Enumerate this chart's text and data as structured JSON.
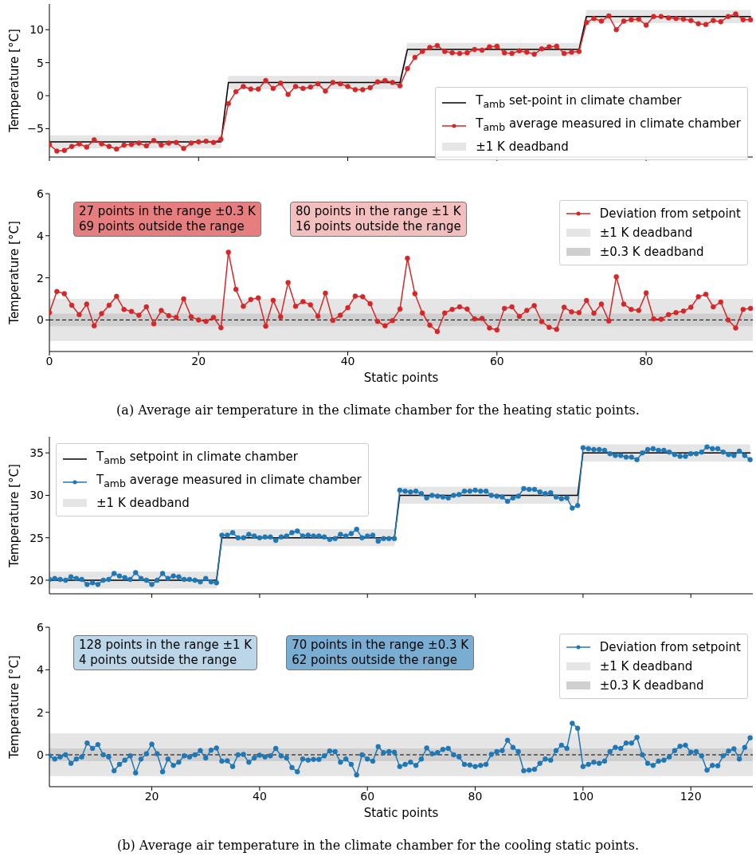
{
  "chart_data": [
    {
      "type": "line",
      "ylabel": "Temperature [°C]",
      "tick_labels": "y",
      "legend": "bottom right",
      "marker": "circle",
      "line_style": "solid",
      "x": [
        0,
        1,
        2,
        3,
        4,
        5,
        6,
        7,
        8,
        9,
        10,
        11,
        12,
        13,
        14,
        15,
        16,
        17,
        18,
        19,
        20,
        21,
        22,
        23,
        24,
        25,
        26,
        27,
        28,
        29,
        30,
        31,
        32,
        33,
        34,
        35,
        36,
        37,
        38,
        39,
        40,
        41,
        42,
        43,
        44,
        45,
        46,
        47,
        48,
        49,
        50,
        51,
        52,
        53,
        54,
        55,
        56,
        57,
        58,
        59,
        60,
        61,
        62,
        63,
        64,
        65,
        66,
        67,
        68,
        69,
        70,
        71,
        72,
        73,
        74,
        75,
        76,
        77,
        78,
        79,
        80,
        81,
        82,
        83,
        84,
        85,
        86,
        87,
        88,
        89,
        90,
        91,
        92,
        93,
        94
      ],
      "xlim": [
        0,
        94.3
      ],
      "xticks": [
        0,
        20,
        40,
        60,
        80
      ],
      "ylim": [
        -9.3,
        13.9
      ],
      "yticks": [
        {
          "value": -5,
          "label": "−5"
        },
        0,
        5,
        10
      ],
      "series": [
        {
          "name": "T$_{amb}$ set-point in climate chamber",
          "type": "line",
          "marker": "none",
          "color": "#000000",
          "values": [
            -7,
            -7,
            -7,
            -7,
            -7,
            -7,
            -7,
            -7,
            -7,
            -7,
            -7,
            -7,
            -7,
            -7,
            -7,
            -7,
            -7,
            -7,
            -7,
            -7,
            -7,
            -7,
            -7,
            -7,
            2,
            2,
            2,
            2,
            2,
            2,
            2,
            2,
            2,
            2,
            2,
            2,
            2,
            2,
            2,
            2,
            2,
            2,
            2,
            2,
            2,
            2,
            2,
            2,
            7,
            7,
            7,
            7,
            7,
            7,
            7,
            7,
            7,
            7,
            7,
            7,
            7,
            7,
            7,
            7,
            7,
            7,
            7,
            7,
            7,
            7,
            7,
            7,
            12,
            12,
            12,
            12,
            12,
            12,
            12,
            12,
            12,
            12,
            12,
            12,
            12,
            12,
            12,
            12,
            12,
            12,
            12,
            12,
            12,
            12,
            12
          ]
        },
        {
          "name": "T$_{amb}$ average measured in climate chamber",
          "type": "line",
          "color": "#d62728",
          "values": [
            -7.4,
            -8.4,
            -8.3,
            -7.7,
            -7.3,
            -7.8,
            -6.7,
            -7.3,
            -7.7,
            -8.1,
            -7.5,
            -7.4,
            -7.2,
            -7.6,
            -6.8,
            -7.5,
            -7.2,
            -7.1,
            -8.0,
            -7.2,
            -7.0,
            -6.9,
            -7.1,
            -6.6,
            -1.2,
            0.6,
            1.4,
            1.0,
            1.0,
            2.3,
            1.1,
            1.9,
            0.2,
            1.4,
            1.1,
            1.3,
            1.8,
            0.7,
            2.0,
            1.8,
            1.4,
            0.9,
            0.9,
            1.2,
            2.1,
            2.3,
            2.0,
            1.5,
            4.1,
            5.8,
            6.7,
            7.3,
            7.6,
            6.7,
            6.5,
            6.4,
            6.5,
            7.0,
            6.9,
            7.4,
            7.5,
            6.5,
            6.4,
            6.8,
            6.6,
            6.3,
            7.1,
            7.4,
            7.5,
            6.4,
            6.6,
            6.7,
            11.1,
            11.7,
            11.3,
            12.1,
            10.0,
            11.3,
            11.5,
            11.6,
            10.7,
            12.0,
            12.0,
            11.8,
            11.7,
            11.6,
            11.4,
            10.9,
            10.8,
            11.4,
            11.2,
            12.0,
            12.4,
            11.5,
            11.5
          ]
        },
        {
          "name": "±1 K deadband",
          "type": "line",
          "marker": "none",
          "color": "#e5e5e5",
          "values": [
            null,
            null,
            null,
            null,
            null,
            null,
            null,
            null,
            null,
            null,
            null,
            null,
            null,
            null,
            null,
            null,
            null,
            null,
            null,
            null,
            null,
            null,
            null,
            null,
            null,
            null,
            null,
            null,
            null,
            null,
            null,
            null,
            null,
            null,
            null,
            null,
            null,
            null,
            null,
            null,
            null,
            null,
            null,
            null,
            null,
            null,
            null,
            null,
            null,
            null,
            null,
            null,
            null,
            null,
            null,
            null,
            null,
            null,
            null,
            null,
            null,
            null,
            null,
            null,
            null,
            null,
            null,
            null,
            null,
            null,
            null,
            null,
            null,
            null,
            null,
            null,
            null,
            null,
            null,
            null,
            null,
            null,
            null,
            null,
            null,
            null,
            null,
            null,
            null,
            null,
            null,
            null,
            null,
            null,
            null
          ],
          "lower": [
            -8,
            -8,
            -8,
            -8,
            -8,
            -8,
            -8,
            -8,
            -8,
            -8,
            -8,
            -8,
            -8,
            -8,
            -8,
            -8,
            -8,
            -8,
            -8,
            -8,
            -8,
            -8,
            -8,
            -8,
            1,
            1,
            1,
            1,
            1,
            1,
            1,
            1,
            1,
            1,
            1,
            1,
            1,
            1,
            1,
            1,
            1,
            1,
            1,
            1,
            1,
            1,
            1,
            1,
            6,
            6,
            6,
            6,
            6,
            6,
            6,
            6,
            6,
            6,
            6,
            6,
            6,
            6,
            6,
            6,
            6,
            6,
            6,
            6,
            6,
            6,
            6,
            6,
            11,
            11,
            11,
            11,
            11,
            11,
            11,
            11,
            11,
            11,
            11,
            11,
            11,
            11,
            11,
            11,
            11,
            11,
            11,
            11,
            11,
            11,
            11
          ],
          "upper": [
            -6,
            -6,
            -6,
            -6,
            -6,
            -6,
            -6,
            -6,
            -6,
            -6,
            -6,
            -6,
            -6,
            -6,
            -6,
            -6,
            -6,
            -6,
            -6,
            -6,
            -6,
            -6,
            -6,
            -6,
            3,
            3,
            3,
            3,
            3,
            3,
            3,
            3,
            3,
            3,
            3,
            3,
            3,
            3,
            3,
            3,
            3,
            3,
            3,
            3,
            3,
            3,
            3,
            3,
            8,
            8,
            8,
            8,
            8,
            8,
            8,
            8,
            8,
            8,
            8,
            8,
            8,
            8,
            8,
            8,
            8,
            8,
            8,
            8,
            8,
            8,
            8,
            8,
            13,
            13,
            13,
            13,
            13,
            13,
            13,
            13,
            13,
            13,
            13,
            13,
            13,
            13,
            13,
            13,
            13,
            13,
            13,
            13,
            13,
            13,
            13
          ]
        }
      ]
    },
    {
      "type": "line",
      "xlabel": "Static points",
      "ylabel": "Temperature [°C]",
      "legend": "top right",
      "marker": "circle",
      "line_style": "solid",
      "x": [
        0,
        1,
        2,
        3,
        4,
        5,
        6,
        7,
        8,
        9,
        10,
        11,
        12,
        13,
        14,
        15,
        16,
        17,
        18,
        19,
        20,
        21,
        22,
        23,
        24,
        25,
        26,
        27,
        28,
        29,
        30,
        31,
        32,
        33,
        34,
        35,
        36,
        37,
        38,
        39,
        40,
        41,
        42,
        43,
        44,
        45,
        46,
        47,
        48,
        49,
        50,
        51,
        52,
        53,
        54,
        55,
        56,
        57,
        58,
        59,
        60,
        61,
        62,
        63,
        64,
        65,
        66,
        67,
        68,
        69,
        70,
        71,
        72,
        73,
        74,
        75,
        76,
        77,
        78,
        79,
        80,
        81,
        82,
        83,
        84,
        85,
        86,
        87,
        88,
        89,
        90,
        91,
        92,
        93,
        94
      ],
      "xlim": [
        0,
        94.3
      ],
      "xticks": [
        0,
        20,
        40,
        60,
        80
      ],
      "ylim": [
        -1.5,
        6
      ],
      "yticks": [
        0,
        2,
        4,
        6
      ],
      "series": [
        {
          "name": "Deviation from setpoint",
          "color": "#d62728",
          "values": [
            0.35,
            1.35,
            1.25,
            0.7,
            0.25,
            0.75,
            -0.28,
            0.3,
            0.7,
            1.12,
            0.5,
            0.4,
            0.22,
            0.62,
            -0.18,
            0.45,
            0.2,
            0.12,
            1.0,
            0.15,
            0.0,
            -0.07,
            0.12,
            -0.37,
            3.22,
            1.45,
            0.65,
            0.97,
            1.05,
            -0.3,
            0.93,
            0.15,
            1.78,
            0.65,
            0.87,
            0.72,
            0.18,
            1.27,
            -0.02,
            0.22,
            0.58,
            1.13,
            1.1,
            0.77,
            -0.07,
            -0.28,
            -0.03,
            0.52,
            2.93,
            1.25,
            0.33,
            -0.25,
            -0.55,
            0.33,
            0.5,
            0.62,
            0.52,
            0.05,
            0.07,
            -0.38,
            -0.48,
            0.55,
            0.62,
            0.17,
            0.45,
            0.68,
            -0.08,
            -0.35,
            -0.45,
            0.6,
            0.38,
            0.35,
            0.92,
            0.32,
            0.75,
            -0.05,
            2.05,
            0.75,
            0.5,
            0.45,
            1.28,
            0.05,
            0.03,
            0.25,
            0.35,
            0.42,
            0.6,
            1.1,
            1.22,
            0.62,
            0.85,
            0.0,
            -0.38,
            0.5,
            0.55
          ]
        }
      ],
      "bands": [
        {
          "axis": "y",
          "from": -1,
          "to": 1,
          "label": "±1 K deadband",
          "color": "#e5e5e5"
        },
        {
          "axis": "y",
          "from": -0.3,
          "to": 0.3,
          "label": "±0.3 K deadband",
          "color": "#cfcfcf"
        }
      ],
      "ref_lines": [
        {
          "axis": "y",
          "value": 0,
          "color": "#000000",
          "line_style": "dashed"
        }
      ],
      "annotations": [
        "27 points in the range ±0.3 K\n69 points outside the range",
        "80 points in the range ±1 K\n16 points outside the range",
        "(a) Average air temperature in the climate chamber for the heating static points."
      ]
    },
    {
      "type": "line",
      "ylabel": "Temperature [°C]",
      "tick_labels": "y",
      "legend": "top left",
      "marker": "circle",
      "line_style": "solid",
      "x": [
        1,
        2,
        3,
        4,
        5,
        6,
        7,
        8,
        9,
        10,
        11,
        12,
        13,
        14,
        15,
        16,
        17,
        18,
        19,
        20,
        21,
        22,
        23,
        24,
        25,
        26,
        27,
        28,
        29,
        30,
        31,
        32,
        33,
        34,
        35,
        36,
        37,
        38,
        39,
        40,
        41,
        42,
        43,
        44,
        45,
        46,
        47,
        48,
        49,
        50,
        51,
        52,
        53,
        54,
        55,
        56,
        57,
        58,
        59,
        60,
        61,
        62,
        63,
        64,
        65,
        66,
        67,
        68,
        69,
        70,
        71,
        72,
        73,
        74,
        75,
        76,
        77,
        78,
        79,
        80,
        81,
        82,
        83,
        84,
        85,
        86,
        87,
        88,
        89,
        90,
        91,
        92,
        93,
        94,
        95,
        96,
        97,
        98,
        99,
        100,
        101,
        102,
        103,
        104,
        105,
        106,
        107,
        108,
        109,
        110,
        111,
        112,
        113,
        114,
        115,
        116,
        117,
        118,
        119,
        120,
        121,
        122,
        123,
        124,
        125,
        126,
        127,
        128,
        129,
        130,
        131
      ],
      "xlim": [
        1,
        131.5
      ],
      "xticks": [
        20,
        40,
        60,
        80,
        100,
        120
      ],
      "ylim": [
        18.4,
        36.9
      ],
      "yticks": [
        20,
        25,
        30,
        35
      ],
      "series": [
        {
          "name": "T$_{amb}$ setpoint in climate chamber",
          "type": "line",
          "marker": "none",
          "color": "#000000",
          "values": [
            20,
            20,
            20,
            20,
            20,
            20,
            20,
            20,
            20,
            20,
            20,
            20,
            20,
            20,
            20,
            20,
            20,
            20,
            20,
            20,
            20,
            20,
            20,
            20,
            20,
            20,
            20,
            20,
            20,
            20,
            20,
            20,
            25,
            25,
            25,
            25,
            25,
            25,
            25,
            25,
            25,
            25,
            25,
            25,
            25,
            25,
            25,
            25,
            25,
            25,
            25,
            25,
            25,
            25,
            25,
            25,
            25,
            25,
            25,
            25,
            25,
            25,
            25,
            25,
            25,
            30,
            30,
            30,
            30,
            30,
            30,
            30,
            30,
            30,
            30,
            30,
            30,
            30,
            30,
            30,
            30,
            30,
            30,
            30,
            30,
            30,
            30,
            30,
            30,
            30,
            30,
            30,
            30,
            30,
            30,
            30,
            30,
            30,
            30,
            35,
            35,
            35,
            35,
            35,
            35,
            35,
            35,
            35,
            35,
            35,
            35,
            35,
            35,
            35,
            35,
            35,
            35,
            35,
            35,
            35,
            35,
            35,
            35,
            35,
            35,
            35,
            35,
            35,
            35,
            35,
            35
          ]
        },
        {
          "name": "T$_{amb}$ average measured in climate chamber",
          "type": "line",
          "color": "#1f77b4",
          "values": [
            20.1,
            20.2,
            20.1,
            20.0,
            20.4,
            20.2,
            20.1,
            19.5,
            19.7,
            19.5,
            20.0,
            20.1,
            20.8,
            20.5,
            20.3,
            20.1,
            20.9,
            20.2,
            20.0,
            19.5,
            20.0,
            20.8,
            20.2,
            20.5,
            20.4,
            20.1,
            20.1,
            20.0,
            19.8,
            20.2,
            19.8,
            19.7,
            25.3,
            25.3,
            25.6,
            25.0,
            25.0,
            25.4,
            25.2,
            25.0,
            25.1,
            25.1,
            24.7,
            25.1,
            25.2,
            25.6,
            25.8,
            25.2,
            25.3,
            25.2,
            25.2,
            25.1,
            24.8,
            24.9,
            25.4,
            25.2,
            25.5,
            26.0,
            25.0,
            25.2,
            25.3,
            24.6,
            24.9,
            24.9,
            24.9,
            30.6,
            30.5,
            30.4,
            30.5,
            30.2,
            29.7,
            30.0,
            29.9,
            29.8,
            29.7,
            30.0,
            30.1,
            30.5,
            30.5,
            30.6,
            30.5,
            30.5,
            30.0,
            29.9,
            29.8,
            29.3,
            29.7,
            29.9,
            30.8,
            30.7,
            30.7,
            30.4,
            30.2,
            30.3,
            29.8,
            29.6,
            29.7,
            28.5,
            28.8,
            35.6,
            35.5,
            35.4,
            35.4,
            35.3,
            34.9,
            34.7,
            34.7,
            34.5,
            34.5,
            34.2,
            35.0,
            35.4,
            35.5,
            35.3,
            35.3,
            35.1,
            34.8,
            34.6,
            34.6,
            34.9,
            34.9,
            35.1,
            35.7,
            35.5,
            35.5,
            35.1,
            34.8,
            34.7,
            35.2,
            34.7,
            34.2
          ]
        },
        {
          "name": "±1 K deadband",
          "type": "line",
          "marker": "none",
          "color": "#e5e5e5",
          "values": [
            null,
            null,
            null,
            null,
            null,
            null,
            null,
            null,
            null,
            null,
            null,
            null,
            null,
            null,
            null,
            null,
            null,
            null,
            null,
            null,
            null,
            null,
            null,
            null,
            null,
            null,
            null,
            null,
            null,
            null,
            null,
            null,
            null,
            null,
            null,
            null,
            null,
            null,
            null,
            null,
            null,
            null,
            null,
            null,
            null,
            null,
            null,
            null,
            null,
            null,
            null,
            null,
            null,
            null,
            null,
            null,
            null,
            null,
            null,
            null,
            null,
            null,
            null,
            null,
            null,
            null,
            null,
            null,
            null,
            null,
            null,
            null,
            null,
            null,
            null,
            null,
            null,
            null,
            null,
            null,
            null,
            null,
            null,
            null,
            null,
            null,
            null,
            null,
            null,
            null,
            null,
            null,
            null,
            null,
            null,
            null,
            null,
            null,
            null,
            null,
            null,
            null,
            null,
            null,
            null,
            null,
            null,
            null,
            null,
            null,
            null,
            null,
            null,
            null,
            null,
            null,
            null,
            null,
            null,
            null,
            null,
            null,
            null,
            null,
            null,
            null,
            null,
            null,
            null,
            null,
            null
          ],
          "lower": [
            19,
            19,
            19,
            19,
            19,
            19,
            19,
            19,
            19,
            19,
            19,
            19,
            19,
            19,
            19,
            19,
            19,
            19,
            19,
            19,
            19,
            19,
            19,
            19,
            19,
            19,
            19,
            19,
            19,
            19,
            19,
            19,
            24,
            24,
            24,
            24,
            24,
            24,
            24,
            24,
            24,
            24,
            24,
            24,
            24,
            24,
            24,
            24,
            24,
            24,
            24,
            24,
            24,
            24,
            24,
            24,
            24,
            24,
            24,
            24,
            24,
            24,
            24,
            24,
            24,
            29,
            29,
            29,
            29,
            29,
            29,
            29,
            29,
            29,
            29,
            29,
            29,
            29,
            29,
            29,
            29,
            29,
            29,
            29,
            29,
            29,
            29,
            29,
            29,
            29,
            29,
            29,
            29,
            29,
            29,
            29,
            29,
            29,
            29,
            34,
            34,
            34,
            34,
            34,
            34,
            34,
            34,
            34,
            34,
            34,
            34,
            34,
            34,
            34,
            34,
            34,
            34,
            34,
            34,
            34,
            34,
            34,
            34,
            34,
            34,
            34,
            34,
            34,
            34,
            34,
            34
          ],
          "upper": [
            21,
            21,
            21,
            21,
            21,
            21,
            21,
            21,
            21,
            21,
            21,
            21,
            21,
            21,
            21,
            21,
            21,
            21,
            21,
            21,
            21,
            21,
            21,
            21,
            21,
            21,
            21,
            21,
            21,
            21,
            21,
            21,
            26,
            26,
            26,
            26,
            26,
            26,
            26,
            26,
            26,
            26,
            26,
            26,
            26,
            26,
            26,
            26,
            26,
            26,
            26,
            26,
            26,
            26,
            26,
            26,
            26,
            26,
            26,
            26,
            26,
            26,
            26,
            26,
            26,
            31,
            31,
            31,
            31,
            31,
            31,
            31,
            31,
            31,
            31,
            31,
            31,
            31,
            31,
            31,
            31,
            31,
            31,
            31,
            31,
            31,
            31,
            31,
            31,
            31,
            31,
            31,
            31,
            31,
            31,
            31,
            31,
            31,
            31,
            36,
            36,
            36,
            36,
            36,
            36,
            36,
            36,
            36,
            36,
            36,
            36,
            36,
            36,
            36,
            36,
            36,
            36,
            36,
            36,
            36,
            36,
            36,
            36,
            36,
            36,
            36,
            36,
            36,
            36,
            36,
            36
          ]
        }
      ]
    },
    {
      "type": "line",
      "xlabel": "Static points",
      "ylabel": "Temperature [°C]",
      "legend": "top right",
      "marker": "circle",
      "line_style": "solid",
      "x": [
        1,
        2,
        3,
        4,
        5,
        6,
        7,
        8,
        9,
        10,
        11,
        12,
        13,
        14,
        15,
        16,
        17,
        18,
        19,
        20,
        21,
        22,
        23,
        24,
        25,
        26,
        27,
        28,
        29,
        30,
        31,
        32,
        33,
        34,
        35,
        36,
        37,
        38,
        39,
        40,
        41,
        42,
        43,
        44,
        45,
        46,
        47,
        48,
        49,
        50,
        51,
        52,
        53,
        54,
        55,
        56,
        57,
        58,
        59,
        60,
        61,
        62,
        63,
        64,
        65,
        66,
        67,
        68,
        69,
        70,
        71,
        72,
        73,
        74,
        75,
        76,
        77,
        78,
        79,
        80,
        81,
        82,
        83,
        84,
        85,
        86,
        87,
        88,
        89,
        90,
        91,
        92,
        93,
        94,
        95,
        96,
        97,
        98,
        99,
        100,
        101,
        102,
        103,
        104,
        105,
        106,
        107,
        108,
        109,
        110,
        111,
        112,
        113,
        114,
        115,
        116,
        117,
        118,
        119,
        120,
        121,
        122,
        123,
        124,
        125,
        126,
        127,
        128,
        129,
        130,
        131
      ],
      "xlim": [
        1,
        131.5
      ],
      "xticks": [
        20,
        40,
        60,
        80,
        100,
        120
      ],
      "ylim": [
        -1.5,
        6
      ],
      "yticks": [
        0,
        2,
        4,
        6
      ],
      "series": [
        {
          "name": "Deviation from setpoint",
          "color": "#1f77b4",
          "values": [
            -0.05,
            -0.2,
            -0.1,
            0.0,
            -0.4,
            -0.2,
            -0.1,
            0.55,
            0.3,
            0.48,
            0.0,
            -0.1,
            -0.75,
            -0.45,
            -0.25,
            -0.05,
            -0.85,
            -0.2,
            0.05,
            0.5,
            0.05,
            -0.8,
            -0.2,
            -0.5,
            -0.35,
            -0.05,
            -0.1,
            0.0,
            0.2,
            -0.15,
            0.22,
            0.32,
            -0.3,
            -0.28,
            -0.55,
            0.0,
            0.02,
            -0.35,
            -0.15,
            -0.02,
            -0.1,
            -0.05,
            0.3,
            -0.05,
            -0.15,
            -0.6,
            -0.8,
            -0.2,
            -0.25,
            -0.22,
            -0.22,
            -0.05,
            0.18,
            0.15,
            -0.35,
            -0.2,
            -0.45,
            -0.95,
            0.0,
            -0.2,
            -0.3,
            0.38,
            0.1,
            0.15,
            0.12,
            -0.55,
            -0.45,
            -0.35,
            -0.5,
            -0.2,
            0.32,
            0.05,
            0.1,
            0.25,
            0.3,
            0.0,
            -0.1,
            -0.45,
            -0.48,
            -0.55,
            -0.5,
            -0.45,
            0.02,
            0.15,
            0.2,
            0.68,
            0.35,
            0.15,
            -0.75,
            -0.72,
            -0.68,
            -0.4,
            -0.2,
            -0.25,
            0.2,
            0.45,
            0.3,
            1.48,
            1.25,
            -0.55,
            -0.45,
            -0.35,
            -0.4,
            -0.3,
            0.15,
            0.35,
            0.3,
            0.55,
            0.55,
            0.82,
            0.0,
            -0.4,
            -0.5,
            -0.3,
            -0.25,
            -0.1,
            0.2,
            0.4,
            0.45,
            0.12,
            0.15,
            -0.05,
            -0.72,
            -0.5,
            -0.52,
            -0.05,
            0.18,
            0.28,
            -0.2,
            0.35,
            0.8
          ]
        }
      ],
      "bands": [
        {
          "axis": "y",
          "from": -1,
          "to": 1,
          "label": "±1 K deadband",
          "color": "#e5e5e5"
        },
        {
          "axis": "y",
          "from": -0.3,
          "to": 0.3,
          "label": "±0.3 K deadband",
          "color": "#cfcfcf"
        }
      ],
      "ref_lines": [
        {
          "axis": "y",
          "value": 0,
          "color": "#000000",
          "line_style": "dashed"
        }
      ],
      "annotations": [
        "128 points in the range ±1 K\n4 points outside the range",
        "70 points in the range ±0.3 K\n62 points outside the range",
        "(b) Average air temperature in the climate chamber for the cooling static points."
      ]
    }
  ]
}
